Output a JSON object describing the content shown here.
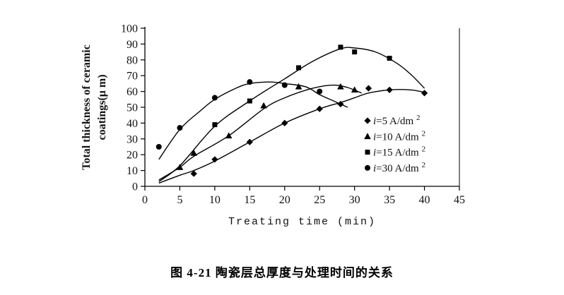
{
  "caption": "图 4-21 陶瓷层总厚度与处理时间的关系",
  "colors": {
    "ink": "#000000",
    "background": "#ffffff"
  },
  "chart_data": {
    "type": "scatter",
    "title": "",
    "xlabel": "Treating time (min)",
    "ylabel_line1": "Total thickness of ceramic",
    "ylabel_line2": "coatings(μ m)",
    "xlim": [
      0,
      45
    ],
    "ylim": [
      0,
      100
    ],
    "x_ticks": [
      0,
      5,
      10,
      15,
      20,
      25,
      30,
      35,
      40,
      45
    ],
    "y_ticks": [
      0,
      10,
      20,
      30,
      40,
      50,
      60,
      70,
      80,
      90,
      100
    ],
    "grid": false,
    "legend_position": "inside-right-bottom",
    "series": [
      {
        "name": "i=5 A/dm²",
        "marker": "diamond",
        "points": [
          [
            7,
            8
          ],
          [
            10,
            17
          ],
          [
            15,
            28
          ],
          [
            20,
            40
          ],
          [
            25,
            49
          ],
          [
            28,
            52
          ],
          [
            32,
            62
          ],
          [
            35,
            61
          ],
          [
            40,
            59
          ]
        ],
        "curve": [
          [
            2,
            2
          ],
          [
            5,
            7
          ],
          [
            7,
            10
          ],
          [
            10,
            16
          ],
          [
            15,
            28
          ],
          [
            20,
            40
          ],
          [
            25,
            49
          ],
          [
            28,
            53
          ],
          [
            30,
            56
          ],
          [
            32,
            59
          ],
          [
            35,
            61
          ],
          [
            38,
            61
          ],
          [
            40,
            59.5
          ]
        ]
      },
      {
        "name": "i=10 A/dm²",
        "marker": "triangle",
        "points": [
          [
            5,
            12
          ],
          [
            7,
            21
          ],
          [
            12,
            32
          ],
          [
            17,
            51
          ],
          [
            22,
            63
          ],
          [
            28,
            63
          ],
          [
            30,
            61
          ]
        ],
        "curve": [
          [
            2,
            4
          ],
          [
            5,
            12
          ],
          [
            7,
            19
          ],
          [
            12,
            32
          ],
          [
            17,
            49
          ],
          [
            20,
            56
          ],
          [
            24,
            62
          ],
          [
            27,
            64
          ],
          [
            29,
            62.5
          ],
          [
            31,
            59
          ]
        ]
      },
      {
        "name": "i=15 A/dm²",
        "marker": "square",
        "points": [
          [
            10,
            39
          ],
          [
            15,
            54
          ],
          [
            22,
            75
          ],
          [
            28,
            88
          ],
          [
            30,
            85
          ],
          [
            35,
            81
          ]
        ],
        "curve": [
          [
            2,
            3
          ],
          [
            5,
            13
          ],
          [
            10,
            38
          ],
          [
            15,
            54
          ],
          [
            20,
            68
          ],
          [
            24,
            79
          ],
          [
            28,
            87
          ],
          [
            30,
            87.5
          ],
          [
            33,
            85
          ],
          [
            36,
            78
          ],
          [
            38,
            71
          ],
          [
            40,
            62
          ]
        ]
      },
      {
        "name": "i=30 A/dm²",
        "marker": "circle",
        "points": [
          [
            2,
            25
          ],
          [
            5,
            37
          ],
          [
            10,
            56
          ],
          [
            15,
            66
          ],
          [
            20,
            64
          ],
          [
            25,
            60
          ]
        ],
        "curve": [
          [
            2,
            17
          ],
          [
            5,
            36
          ],
          [
            8,
            48
          ],
          [
            10,
            55
          ],
          [
            13,
            62
          ],
          [
            15,
            65
          ],
          [
            18,
            66
          ],
          [
            20,
            65
          ],
          [
            23,
            63
          ],
          [
            25,
            58
          ],
          [
            27,
            54
          ],
          [
            29,
            50
          ]
        ]
      }
    ],
    "legend": [
      {
        "marker": "diamond",
        "var": "i",
        "rest": "=5 A/dm",
        "sup": "2"
      },
      {
        "marker": "triangle",
        "var": "i",
        "rest": "=10 A/dm",
        "sup": "2"
      },
      {
        "marker": "square",
        "var": "i",
        "rest": "=15 A/dm",
        "sup": "2"
      },
      {
        "marker": "circle",
        "var": "i",
        "rest": "=30 A/dm",
        "sup": "2"
      }
    ]
  }
}
